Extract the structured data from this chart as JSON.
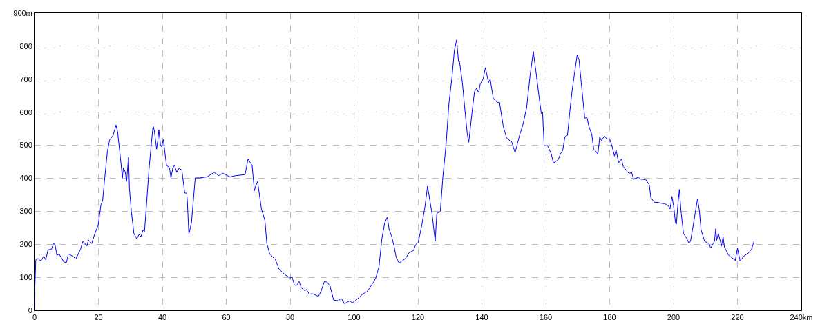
{
  "chart_data": {
    "type": "line",
    "xlim": [
      0,
      240
    ],
    "ylim": [
      0,
      900
    ],
    "xticks": [
      0,
      20,
      40,
      60,
      80,
      100,
      120,
      140,
      160,
      180,
      200,
      220,
      {
        "value": 240,
        "label": "240km"
      }
    ],
    "yticks": [
      0,
      100,
      200,
      300,
      400,
      500,
      600,
      700,
      800,
      {
        "value": 900,
        "label": "900m"
      }
    ],
    "grid": true,
    "marker": "none",
    "line_style": "solid",
    "series": [
      {
        "color": "#0000ff",
        "x": [
          0,
          0.1,
          0.4,
          0.9,
          2,
          2.9,
          3.5,
          4.2,
          5.3,
          5.9,
          6.4,
          7,
          7.7,
          9.2,
          10,
          10.6,
          12.2,
          12.9,
          14.4,
          15.1,
          16.4,
          16.9,
          17.9,
          18.8,
          19.9,
          20.8,
          21.3,
          22,
          22.8,
          23.5,
          24.6,
          25.5,
          26,
          26.9,
          27.5,
          27.8,
          28.4,
          28.8,
          29.4,
          29.7,
          30.3,
          31.1,
          32,
          32.7,
          33.3,
          34,
          34.4,
          35.1,
          35.8,
          36.6,
          37.1,
          37.5,
          38.2,
          38.6,
          38.9,
          39.4,
          39.8,
          40.3,
          41.3,
          42.2,
          42.7,
          43.3,
          43.8,
          44.5,
          45.2,
          46.1,
          47,
          47.6,
          47.8,
          48.3,
          49.1,
          50.3,
          51.1,
          51.7,
          54,
          56.2,
          57.6,
          58.9,
          61.2,
          63,
          65.9,
          66.8,
          68.1,
          68.8,
          69.2,
          69.8,
          71,
          72.1,
          72.7,
          73.6,
          75.4,
          76.5,
          78.4,
          80,
          80.6,
          81.3,
          82,
          82.8,
          83.5,
          84.6,
          85.1,
          86,
          87.1,
          88.8,
          89.6,
          90.7,
          91.6,
          92.5,
          93.6,
          95.1,
          96,
          97,
          98.7,
          99.4,
          100.9,
          102.7,
          104.1,
          106,
          106.8,
          107.8,
          108.7,
          109.6,
          110.4,
          111,
          111.7,
          112.5,
          113.2,
          114.1,
          116.1,
          117.2,
          118.6,
          119.3,
          120.1,
          121.2,
          122.2,
          123,
          123.7,
          124.4,
          124.9,
          125.4,
          125.9,
          127,
          127.8,
          128.8,
          129.7,
          130.7,
          131.4,
          132.1,
          132.7,
          133,
          133.9,
          134.7,
          135.4,
          135.9,
          137,
          137.7,
          138.3,
          139,
          139.5,
          140.4,
          141.1,
          142.1,
          142.6,
          143.6,
          144.9,
          145.5,
          146.7,
          147.7,
          149.4,
          150.4,
          151.8,
          152.9,
          154,
          155.1,
          156.1,
          156.9,
          157.8,
          158.6,
          159,
          159.5,
          160.6,
          161.7,
          162.4,
          163.9,
          164.6,
          165.3,
          166,
          166.8,
          167.5,
          168.2,
          168.9,
          169.8,
          170.4,
          171.1,
          172.2,
          172.9,
          173.5,
          174.4,
          175,
          175.7,
          176.3,
          176.9,
          177.4,
          178.4,
          179.1,
          180,
          180.8,
          181.5,
          182,
          182.8,
          183.7,
          184.2,
          185.7,
          186.2,
          186.8,
          187.5,
          189,
          189.7,
          191.3,
          192.4,
          192.9,
          194,
          195.1,
          196.1,
          197.3,
          198.5,
          198.9,
          199.5,
          200.1,
          200.6,
          200.9,
          201.3,
          201.8,
          202.4,
          203.1,
          204.2,
          204.8,
          205.3,
          206.4,
          207.5,
          208.1,
          208.6,
          209.7,
          211.1,
          211.6,
          212.8,
          213.2,
          213.5,
          214,
          215,
          215.5,
          215.9,
          217.2,
          219.1,
          219.3,
          220,
          220.8,
          222,
          223.5,
          224.4,
          225.2
        ],
        "values": [
          0,
          70,
          153,
          157,
          150,
          164,
          153,
          183,
          185,
          202,
          199,
          167,
          170,
          146,
          145,
          171,
          162,
          155,
          185,
          209,
          195,
          213,
          202,
          230,
          258,
          320,
          331,
          404,
          481,
          516,
          530,
          561,
          540,
          460,
          401,
          432,
          418,
          390,
          463,
          369,
          300,
          233,
          216,
          230,
          223,
          244,
          237,
          328,
          425,
          509,
          559,
          543,
          488,
          516,
          547,
          502,
          495,
          517,
          439,
          432,
          401,
          432,
          439,
          418,
          430,
          425,
          355,
          355,
          334,
          230,
          265,
          401,
          401,
          401,
          404,
          418,
          408,
          415,
          404,
          408,
          411,
          458,
          439,
          362,
          376,
          390,
          307,
          272,
          202,
          171,
          153,
          125,
          108,
          98,
          101,
          77,
          75,
          87,
          68,
          59,
          63,
          49,
          50,
          42,
          56,
          87,
          85,
          73,
          31,
          29,
          36,
          20,
          29,
          22,
          33,
          49,
          57,
          84,
          98,
          132,
          216,
          265,
          282,
          244,
          226,
          195,
          160,
          143,
          157,
          174,
          181,
          199,
          206,
          258,
          314,
          376,
          334,
          293,
          251,
          209,
          293,
          300,
          404,
          502,
          627,
          711,
          787,
          819,
          753,
          753,
          690,
          606,
          537,
          509,
          606,
          662,
          672,
          660,
          686,
          700,
          735,
          690,
          700,
          641,
          629,
          631,
          557,
          523,
          509,
          477,
          530,
          564,
          613,
          711,
          784,
          725,
          655,
          596,
          599,
          498,
          498,
          474,
          446,
          456,
          474,
          484,
          526,
          530,
          599,
          662,
          711,
          772,
          760,
          690,
          582,
          584,
          557,
          533,
          488,
          482,
          472,
          526,
          514,
          528,
          519,
          519,
          495,
          467,
          486,
          447,
          458,
          436,
          418,
          413,
          420,
          397,
          403,
          397,
          396,
          380,
          341,
          327,
          327,
          324,
          323,
          315,
          307,
          345,
          310,
          265,
          261,
          314,
          366,
          293,
          233,
          216,
          203,
          209,
          272,
          338,
          300,
          244,
          209,
          202,
          188,
          209,
          247,
          212,
          233,
          195,
          223,
          192,
          167,
          153,
          150,
          188,
          150,
          164,
          174,
          185,
          209
        ]
      }
    ]
  }
}
